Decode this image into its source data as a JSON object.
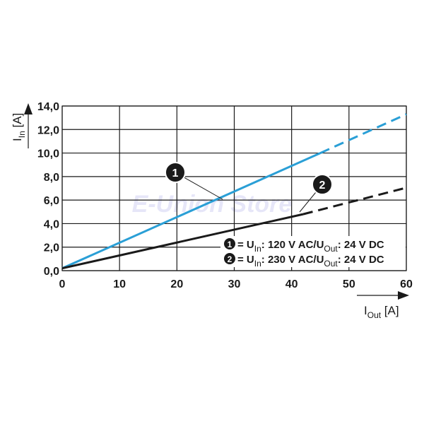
{
  "chart_data": {
    "type": "line",
    "y_label_parts": [
      "I",
      "In",
      " [A]"
    ],
    "x_label_parts": [
      "I",
      "Out",
      " [A]"
    ],
    "xlim": [
      0,
      60
    ],
    "xticks": [
      0,
      10,
      20,
      30,
      40,
      50,
      60
    ],
    "ylim": [
      0,
      14
    ],
    "yticks": [
      {
        "value": 0,
        "label": "0,0"
      },
      {
        "value": 2,
        "label": "2,0"
      },
      {
        "value": 4,
        "label": "4,0"
      },
      {
        "value": 6,
        "label": "6,0"
      },
      {
        "value": 8,
        "label": "8,0"
      },
      {
        "value": 10,
        "label": "10,0"
      },
      {
        "value": 12,
        "label": "12,0"
      },
      {
        "value": 14,
        "label": "14,0"
      }
    ],
    "grid": true,
    "watermark": "E-Union Store",
    "series": [
      {
        "label": "1",
        "color": "#2a9fd6",
        "name_parts": [
          "= U",
          "In",
          ": 120 V AC/U",
          "Out",
          ": 24 V DC"
        ],
        "solid": {
          "x": [
            0,
            45
          ],
          "values": [
            0.2,
            10.0
          ]
        },
        "dashed": {
          "x": [
            45,
            60
          ],
          "values": [
            10.0,
            13.3
          ]
        }
      },
      {
        "label": "2",
        "color": "#1a1a1a",
        "name_parts": [
          "= U",
          "In",
          ": 230 V AC/U",
          "Out",
          ": 24 V DC"
        ],
        "solid": {
          "x": [
            0,
            42
          ],
          "values": [
            0.2,
            4.8
          ]
        },
        "dashed": {
          "x": [
            42,
            60
          ],
          "values": [
            4.8,
            7.05
          ]
        }
      }
    ]
  }
}
